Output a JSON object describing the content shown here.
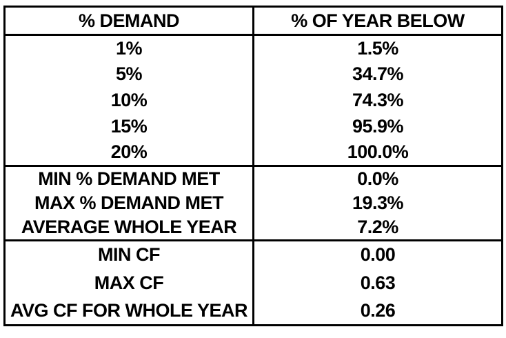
{
  "colors": {
    "background": "#ffffff",
    "border": "#000000",
    "text": "#000000"
  },
  "table": {
    "header": {
      "col1": "% DEMAND",
      "col2": "% OF YEAR BELOW"
    },
    "sections": [
      {
        "rows": [
          [
            "1%",
            "1.5%"
          ],
          [
            "5%",
            "34.7%"
          ],
          [
            "10%",
            "74.3%"
          ],
          [
            "15%",
            "95.9%"
          ],
          [
            "20%",
            "100.0%"
          ]
        ]
      },
      {
        "rows": [
          [
            "MIN % DEMAND MET",
            "0.0%"
          ],
          [
            "MAX % DEMAND MET",
            "19.3%"
          ],
          [
            "AVERAGE WHOLE YEAR",
            "7.2%"
          ]
        ]
      },
      {
        "rows": [
          [
            "MIN CF",
            "0.00"
          ],
          [
            "MAX CF",
            "0.63"
          ],
          [
            "AVG CF FOR WHOLE YEAR",
            "0.26"
          ]
        ]
      }
    ]
  },
  "chart_data": {
    "type": "table",
    "columns": [
      "% DEMAND",
      "% OF YEAR BELOW"
    ],
    "rows": [
      [
        "1%",
        "1.5%"
      ],
      [
        "5%",
        "34.7%"
      ],
      [
        "10%",
        "74.3%"
      ],
      [
        "15%",
        "95.9%"
      ],
      [
        "20%",
        "100.0%"
      ],
      [
        "MIN % DEMAND MET",
        "0.0%"
      ],
      [
        "MAX % DEMAND MET",
        "19.3%"
      ],
      [
        "AVERAGE WHOLE YEAR",
        "7.2%"
      ],
      [
        "MIN CF",
        "0.00"
      ],
      [
        "MAX CF",
        "0.63"
      ],
      [
        "AVG CF FOR WHOLE YEAR",
        "0.26"
      ]
    ],
    "title": "",
    "notes": "Demand-met distribution and capacity factor summary; sections separated by thick rule lines after row '20%' and after 'AVERAGE WHOLE YEAR'."
  }
}
